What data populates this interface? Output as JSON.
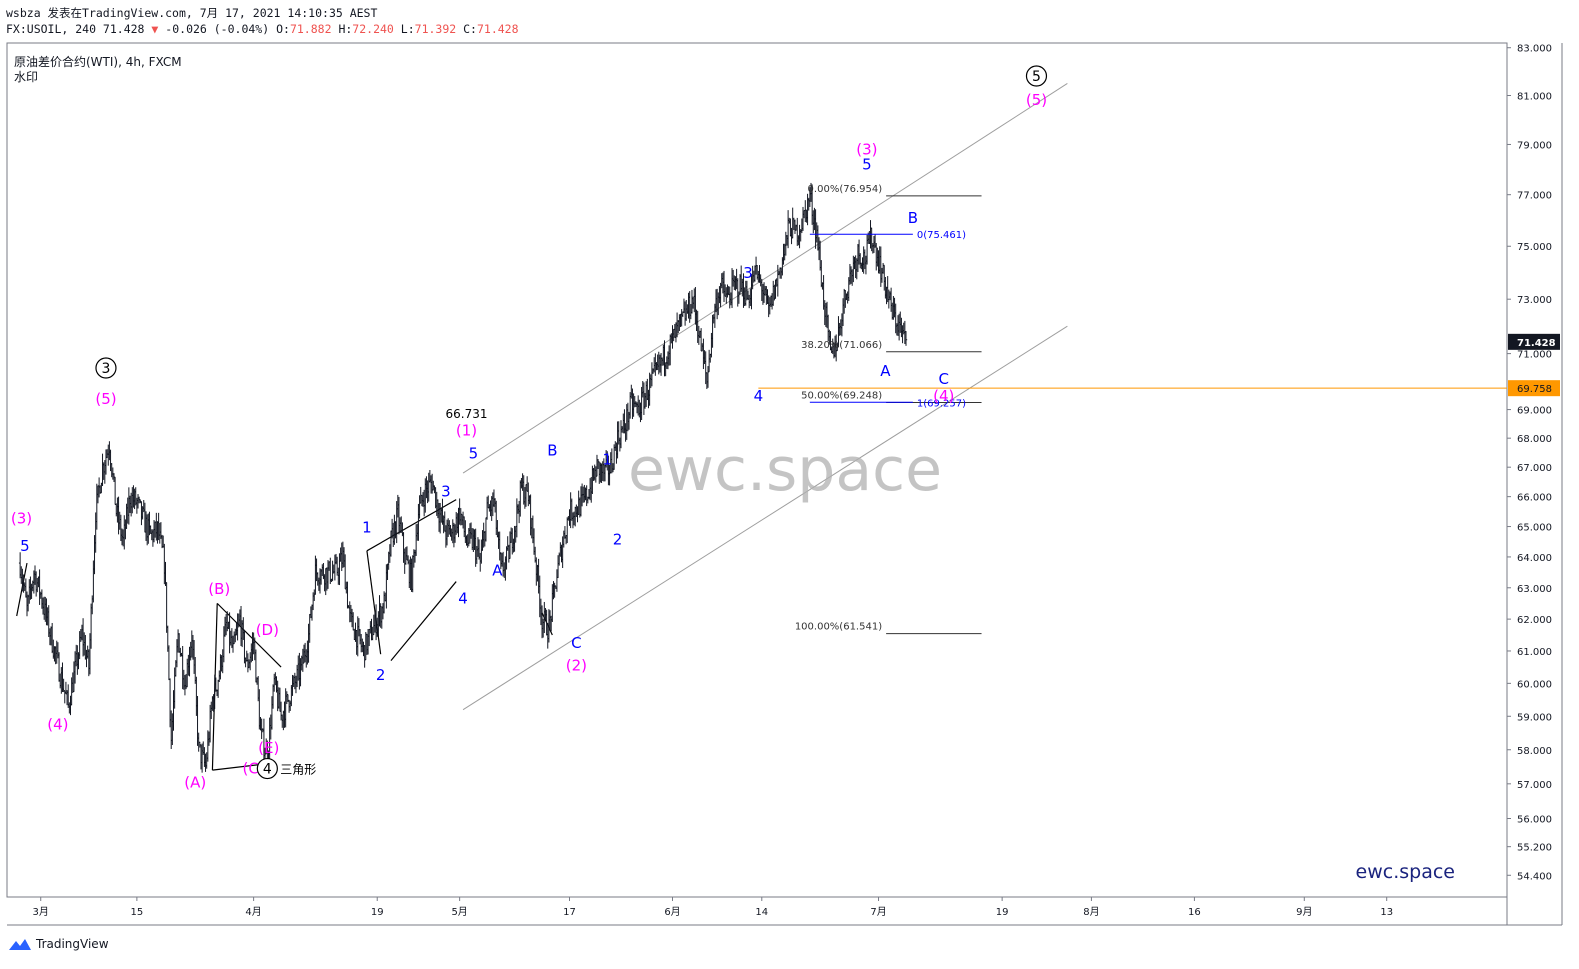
{
  "header": {
    "line1": "wsbza 发表在TradingView.com, 7月 17, 2021 14:10:35 AEST",
    "symbol_line": "FX:USOIL, 240 71.428",
    "change": "-0.026 (-0.04%)",
    "o_label": "O:",
    "o_val": "71.882",
    "h_label": "H:",
    "h_val": "72.240",
    "l_label": "L:",
    "l_val": "71.392",
    "c_label": "C:",
    "c_val": "71.428"
  },
  "instrument": {
    "title": "原油差价合约(WTI), 4h, FXCM",
    "subtitle": "水印"
  },
  "watermark": "ewc.space",
  "brand_text": "ewc.space",
  "footer": {
    "logo_text": "TradingView"
  },
  "colors": {
    "candle": "#131722",
    "wave_blue": "#0000ff",
    "wave_magenta": "#ff00ff",
    "price_line": "#ff9800",
    "channel": "#9e9e9e",
    "fib": "#333333",
    "brand": "#1a237e"
  },
  "chart_data": {
    "type": "candlestick",
    "ylim": [
      53.8,
      83.2
    ],
    "y_ticks": [
      54.4,
      55.2,
      56.0,
      57.0,
      58.0,
      59.0,
      60.0,
      61.0,
      62.0,
      63.0,
      64.0,
      65.0,
      66.0,
      67.0,
      68.0,
      69.0,
      71.0,
      73.0,
      75.0,
      77.0,
      79.0,
      81.0,
      83.0
    ],
    "y_tick_labels": [
      "54.400",
      "55.200",
      "56.000",
      "57.000",
      "58.000",
      "59.000",
      "60.000",
      "61.000",
      "62.000",
      "63.000",
      "64.000",
      "65.000",
      "66.000",
      "67.000",
      "68.000",
      "69.000",
      "71.000",
      "73.000",
      "75.000",
      "77.000",
      "79.000",
      "81.000",
      "83.000"
    ],
    "x_ticks": [
      {
        "label": "3月",
        "d": 0
      },
      {
        "label": "15",
        "d": 14
      },
      {
        "label": "4月",
        "d": 31
      },
      {
        "label": "19",
        "d": 49
      },
      {
        "label": "5月",
        "d": 61
      },
      {
        "label": "17",
        "d": 77
      },
      {
        "label": "6月",
        "d": 92
      },
      {
        "label": "14",
        "d": 105
      },
      {
        "label": "7月",
        "d": 122
      },
      {
        "label": "19",
        "d": 140
      },
      {
        "label": "8月",
        "d": 153
      },
      {
        "label": "16",
        "d": 168
      },
      {
        "label": "9月",
        "d": 184
      },
      {
        "label": "13",
        "d": 196
      }
    ],
    "path": [
      [
        -3,
        63.8
      ],
      [
        -2,
        62.3
      ],
      [
        -1,
        63.5
      ],
      [
        0,
        62.8
      ],
      [
        2,
        61.0
      ],
      [
        4,
        59.3
      ],
      [
        6,
        61.5
      ],
      [
        7,
        60.5
      ],
      [
        8,
        65.5
      ],
      [
        9,
        67.0
      ],
      [
        10,
        67.8
      ],
      [
        11,
        65.5
      ],
      [
        12,
        64.5
      ],
      [
        13,
        66.0
      ],
      [
        14,
        65.8
      ],
      [
        15,
        65.2
      ],
      [
        16,
        64.7
      ],
      [
        17,
        64.9
      ],
      [
        18,
        63.8
      ],
      [
        19,
        58.3
      ],
      [
        20,
        61.5
      ],
      [
        21,
        60.0
      ],
      [
        22,
        61.5
      ],
      [
        23,
        58.0
      ],
      [
        24,
        57.5
      ],
      [
        25,
        59.5
      ],
      [
        26,
        60.3
      ],
      [
        27,
        61.8
      ],
      [
        28,
        61.0
      ],
      [
        29,
        62.0
      ],
      [
        30,
        60.5
      ],
      [
        31,
        61.3
      ],
      [
        32,
        58.5
      ],
      [
        33,
        57.8
      ],
      [
        34,
        60.0
      ],
      [
        35,
        59.0
      ],
      [
        36,
        59.5
      ],
      [
        37,
        60.0
      ],
      [
        38,
        60.5
      ],
      [
        39,
        61.5
      ],
      [
        40,
        63.5
      ],
      [
        41,
        63.5
      ],
      [
        42,
        63.5
      ],
      [
        43,
        63.5
      ],
      [
        44,
        64.0
      ],
      [
        45,
        62.0
      ],
      [
        46,
        61.5
      ],
      [
        47,
        61.0
      ],
      [
        48,
        61.5
      ],
      [
        49,
        62.0
      ],
      [
        50,
        62.5
      ],
      [
        51,
        64.5
      ],
      [
        52,
        65.4
      ],
      [
        53,
        64.0
      ],
      [
        54,
        63.3
      ],
      [
        55,
        65.5
      ],
      [
        56,
        66.2
      ],
      [
        57,
        66.5
      ],
      [
        58,
        65.5
      ],
      [
        59,
        64.8
      ],
      [
        60,
        64.8
      ],
      [
        61,
        65.5
      ],
      [
        62,
        64.5
      ],
      [
        63,
        64.5
      ],
      [
        64,
        63.8
      ],
      [
        65,
        65.5
      ],
      [
        66,
        65.8
      ],
      [
        67,
        63.5
      ],
      [
        68,
        64.0
      ],
      [
        69,
        65.0
      ],
      [
        70,
        66.3
      ],
      [
        71,
        66.0
      ],
      [
        72,
        64.0
      ],
      [
        73,
        62.0
      ],
      [
        74,
        61.7
      ],
      [
        75,
        63.2
      ],
      [
        76,
        64.5
      ],
      [
        77,
        65.5
      ],
      [
        78,
        65.6
      ],
      [
        79,
        65.8
      ],
      [
        80,
        66.3
      ],
      [
        81,
        67.0
      ],
      [
        82,
        66.8
      ],
      [
        83,
        67.0
      ],
      [
        84,
        68.0
      ],
      [
        85,
        68.4
      ],
      [
        86,
        69.2
      ],
      [
        87,
        69.0
      ],
      [
        88,
        69.5
      ],
      [
        89,
        70.0
      ],
      [
        90,
        70.5
      ],
      [
        91,
        71.0
      ],
      [
        92,
        71.5
      ],
      [
        93,
        72.0
      ],
      [
        94,
        72.5
      ],
      [
        95,
        73.0
      ],
      [
        96,
        71.5
      ],
      [
        97,
        70.0
      ],
      [
        98,
        72.5
      ],
      [
        99,
        73.5
      ],
      [
        100,
        73.0
      ],
      [
        101,
        73.5
      ],
      [
        102,
        73.5
      ],
      [
        103,
        73.0
      ],
      [
        104,
        74.0
      ],
      [
        105,
        73.5
      ],
      [
        106,
        72.5
      ],
      [
        107,
        73.5
      ],
      [
        108,
        74.5
      ],
      [
        109,
        75.8
      ],
      [
        110,
        75.5
      ],
      [
        111,
        76.0
      ],
      [
        112,
        76.95
      ],
      [
        113,
        75.5
      ],
      [
        114,
        73.0
      ],
      [
        115,
        70.9
      ],
      [
        116,
        71.5
      ],
      [
        117,
        73.0
      ],
      [
        118,
        74.0
      ],
      [
        119,
        74.8
      ],
      [
        120,
        74.5
      ],
      [
        121,
        75.4
      ],
      [
        122,
        74.5
      ],
      [
        123,
        73.5
      ],
      [
        124,
        72.5
      ],
      [
        125,
        72.0
      ],
      [
        126,
        71.4
      ]
    ],
    "current_price": 71.428,
    "current_price_label": "71.428",
    "level_price": 69.758,
    "level_price_label": "69.758",
    "channel_lines": [
      {
        "from": [
          61.5,
          66.8
        ],
        "to": [
          149.5,
          81.5
        ]
      },
      {
        "from": [
          61.5,
          59.2
        ],
        "to": [
          149.5,
          72.0
        ]
      }
    ],
    "pattern_lines": [
      {
        "from": [
          47.5,
          64.2
        ],
        "to": [
          60.5,
          65.9
        ]
      },
      {
        "from": [
          51.0,
          60.7
        ],
        "to": [
          60.5,
          63.2
        ]
      },
      {
        "from": [
          47.5,
          64.2
        ],
        "to": [
          49.5,
          60.9
        ]
      },
      {
        "from": [
          73.0,
          62.2
        ],
        "to": [
          74.5,
          61.5
        ]
      },
      {
        "from": [
          25.7,
          62.5
        ],
        "to": [
          35.0,
          60.5
        ]
      },
      {
        "from": [
          25.0,
          57.4
        ],
        "to": [
          33.5,
          57.6
        ]
      },
      {
        "from": [
          25.7,
          62.5
        ],
        "to": [
          25.0,
          57.4
        ]
      },
      {
        "from": [
          -3.5,
          62.1
        ],
        "to": [
          -2.0,
          63.8
        ]
      }
    ],
    "fib_levels": [
      {
        "label": "0.00%(76.954)",
        "price": 76.954,
        "d_from": 110.0,
        "d_to": 137.0
      },
      {
        "label": "38.20%(71.066)",
        "price": 71.066,
        "d_from": 110.0,
        "d_to": 137.0
      },
      {
        "label": "50.00%(69.248)",
        "price": 69.248,
        "d_from": 110.0,
        "d_to": 137.0
      },
      {
        "label": "100.00%(61.541)",
        "price": 61.541,
        "d_from": 110.0,
        "d_to": 137.0
      }
    ],
    "blue_levels": [
      {
        "label": "0(75.461)",
        "price": 75.461,
        "d_from": 112.0,
        "d_to": 127.0
      },
      {
        "label": "1(69.257)",
        "price": 69.257,
        "d_from": 112.0,
        "d_to": 127.0
      }
    ],
    "wave_labels": [
      {
        "text": "3",
        "d": 9.5,
        "p": 70.3,
        "color": "black",
        "circled": true
      },
      {
        "text": "(5)",
        "d": 9.5,
        "p": 69.2,
        "color": "magenta"
      },
      {
        "text": "(3)",
        "d": -2.8,
        "p": 65.1,
        "color": "magenta"
      },
      {
        "text": "5",
        "d": -2.3,
        "p": 64.2,
        "color": "blue"
      },
      {
        "text": "(4)",
        "d": 2.5,
        "p": 58.6,
        "color": "magenta"
      },
      {
        "text": "(B)",
        "d": 26.0,
        "p": 62.8,
        "color": "magenta"
      },
      {
        "text": "(D)",
        "d": 33.0,
        "p": 61.5,
        "color": "magenta"
      },
      {
        "text": "(E)",
        "d": 33.2,
        "p": 57.9,
        "color": "magenta"
      },
      {
        "text": "(C)",
        "d": 31.0,
        "p": 57.3,
        "color": "magenta"
      },
      {
        "text": "(A)",
        "d": 22.5,
        "p": 56.9,
        "color": "magenta"
      },
      {
        "text": "4",
        "d": 33.0,
        "p": 57.3,
        "color": "black",
        "circled": true
      },
      {
        "text": "三角形",
        "d": 37.5,
        "p": 57.3,
        "color": "black",
        "small": true
      },
      {
        "text": "1",
        "d": 47.5,
        "p": 64.8,
        "color": "blue"
      },
      {
        "text": "2",
        "d": 49.5,
        "p": 60.1,
        "color": "blue"
      },
      {
        "text": "3",
        "d": 59.0,
        "p": 66.0,
        "color": "blue"
      },
      {
        "text": "4",
        "d": 61.5,
        "p": 62.5,
        "color": "blue"
      },
      {
        "text": "66.731",
        "d": 62.0,
        "p": 68.7,
        "color": "black",
        "small": true
      },
      {
        "text": "(1)",
        "d": 62.0,
        "p": 68.1,
        "color": "magenta"
      },
      {
        "text": "5",
        "d": 63.0,
        "p": 67.3,
        "color": "blue"
      },
      {
        "text": "A",
        "d": 66.5,
        "p": 63.4,
        "color": "blue"
      },
      {
        "text": "B",
        "d": 74.5,
        "p": 67.4,
        "color": "blue"
      },
      {
        "text": "C",
        "d": 78.0,
        "p": 61.1,
        "color": "blue"
      },
      {
        "text": "(2)",
        "d": 78.0,
        "p": 60.4,
        "color": "magenta"
      },
      {
        "text": "1",
        "d": 82.5,
        "p": 67.1,
        "color": "blue"
      },
      {
        "text": "2",
        "d": 84.0,
        "p": 64.4,
        "color": "blue"
      },
      {
        "text": "3",
        "d": 103.0,
        "p": 73.8,
        "color": "blue"
      },
      {
        "text": "4",
        "d": 104.5,
        "p": 69.3,
        "color": "blue"
      },
      {
        "text": "(3)",
        "d": 120.3,
        "p": 78.6,
        "color": "magenta"
      },
      {
        "text": "5",
        "d": 120.3,
        "p": 78.0,
        "color": "blue"
      },
      {
        "text": "A",
        "d": 123.0,
        "p": 70.2,
        "color": "blue"
      },
      {
        "text": "B",
        "d": 127.0,
        "p": 75.9,
        "color": "blue"
      },
      {
        "text": "C",
        "d": 131.5,
        "p": 69.9,
        "color": "blue"
      },
      {
        "text": "(4)",
        "d": 131.5,
        "p": 69.3,
        "color": "magenta"
      },
      {
        "text": "5",
        "d": 145.0,
        "p": 81.6,
        "color": "black",
        "circled": true
      },
      {
        "text": "(5)",
        "d": 145.0,
        "p": 80.6,
        "color": "magenta"
      }
    ]
  }
}
